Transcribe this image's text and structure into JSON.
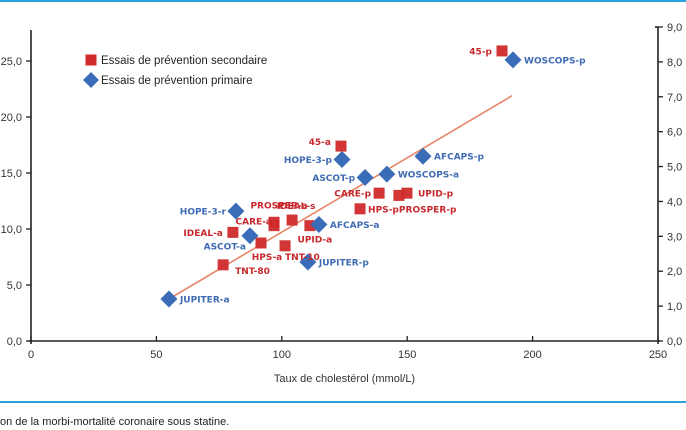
{
  "chart_data": {
    "type": "scatter",
    "title": "",
    "xlabel": "Taux de cholestérol (mmol/L)",
    "ylabel": "",
    "xlim": [
      0,
      250
    ],
    "ylim": [
      0,
      27.8
    ],
    "ylim_right": [
      0,
      9
    ],
    "x_ticks": [
      "0",
      "50",
      "100",
      "150",
      "200",
      "250"
    ],
    "x_tick_values": [
      0,
      50,
      100,
      150,
      200,
      250
    ],
    "y_ticks": [
      "0,0",
      "5,0",
      "10,0",
      "15,0",
      "20,0",
      "25,0"
    ],
    "y_tick_values": [
      0,
      5,
      10,
      15,
      20,
      25
    ],
    "y2_ticks": [
      "0,0",
      "1,0",
      "2,0",
      "3,0",
      "4,0",
      "5,0",
      "6,0",
      "7,0",
      "8,0",
      "9,0"
    ],
    "y2_tick_values": [
      0,
      1,
      2,
      3,
      4,
      5,
      6,
      7,
      8,
      9
    ],
    "grid": false,
    "legend_position": "top-left",
    "series": [
      {
        "name": "Essais de prévention secondaire",
        "marker": "square",
        "color": "#d02a2a",
        "label_color": "#c8282c",
        "points": [
          {
            "label": "45-p",
            "x": 187.8,
            "y": 25.9,
            "label_pos": "left"
          },
          {
            "label": "45-a",
            "x": 123.6,
            "y": 17.4,
            "label_pos": "left-up"
          },
          {
            "label": "CARE-p",
            "x": 138.8,
            "y": 13.2,
            "label_pos": "left"
          },
          {
            "label": "PROSPER-p",
            "x": 146.7,
            "y": 13.0,
            "label_pos": "below-right"
          },
          {
            "label": "UPID-p",
            "x": 149.9,
            "y": 13.2,
            "label_pos": "right"
          },
          {
            "label": "HPS-p",
            "x": 131.2,
            "y": 11.8,
            "label_pos": "right"
          },
          {
            "label": "IDEAL-s",
            "x": 104.1,
            "y": 10.8,
            "label_pos": "up"
          },
          {
            "label": "PROSPER-a",
            "x": 96.9,
            "y": 10.6,
            "label_pos": "up"
          },
          {
            "label": "CARE-a",
            "x": 96.9,
            "y": 10.3,
            "label_pos": "left"
          },
          {
            "label": "IDEAL-a",
            "x": 80.5,
            "y": 9.7,
            "label_pos": "left"
          },
          {
            "label": "UPID-a",
            "x": 111.2,
            "y": 10.3,
            "label_pos": "below"
          },
          {
            "label": "HPS-a",
            "x": 91.7,
            "y": 8.75,
            "label_pos": "below"
          },
          {
            "label": "TNT-10",
            "x": 101.3,
            "y": 8.5,
            "label_pos": "right"
          },
          {
            "label": "TNT-80",
            "x": 76.6,
            "y": 6.8,
            "label_pos": "below-right"
          }
        ]
      },
      {
        "name": "Essais de prévention primaire",
        "marker": "diamond",
        "color": "#3b6cb7",
        "label_color": "#3f6bb3",
        "points": [
          {
            "label": "WOSCOPS-p",
            "x": 192.2,
            "y": 25.1,
            "label_pos": "right"
          },
          {
            "label": "HOPE-3-p",
            "x": 124.0,
            "y": 16.2,
            "label_pos": "left"
          },
          {
            "label": "AFCAPS-p",
            "x": 156.3,
            "y": 16.5,
            "label_pos": "right"
          },
          {
            "label": "ASCOT-p",
            "x": 133.2,
            "y": 14.6,
            "label_pos": "left"
          },
          {
            "label": "WOSCOPS-a",
            "x": 141.9,
            "y": 14.9,
            "label_pos": "right"
          },
          {
            "label": "HOPE-3-r",
            "x": 81.7,
            "y": 11.6,
            "label_pos": "left"
          },
          {
            "label": "ASCOT-a",
            "x": 87.3,
            "y": 9.4,
            "label_pos": "left-down"
          },
          {
            "label": "AFCAPS-a",
            "x": 114.8,
            "y": 10.4,
            "label_pos": "right"
          },
          {
            "label": "JUPITER-p",
            "x": 110.4,
            "y": 7.05,
            "label_pos": "right"
          },
          {
            "label": "JUPITER-a",
            "x": 55.0,
            "y": 3.75,
            "label_pos": "right"
          }
        ]
      }
    ],
    "trendline": {
      "x": [
        55.0,
        191.8
      ],
      "y": [
        3.75,
        21.9
      ],
      "color": "#e8866a"
    }
  },
  "caption": "on de la morbi-mortalité coronaire sous statine.",
  "colors": {
    "rule": "#2aa3dd",
    "axis": "#222222"
  }
}
